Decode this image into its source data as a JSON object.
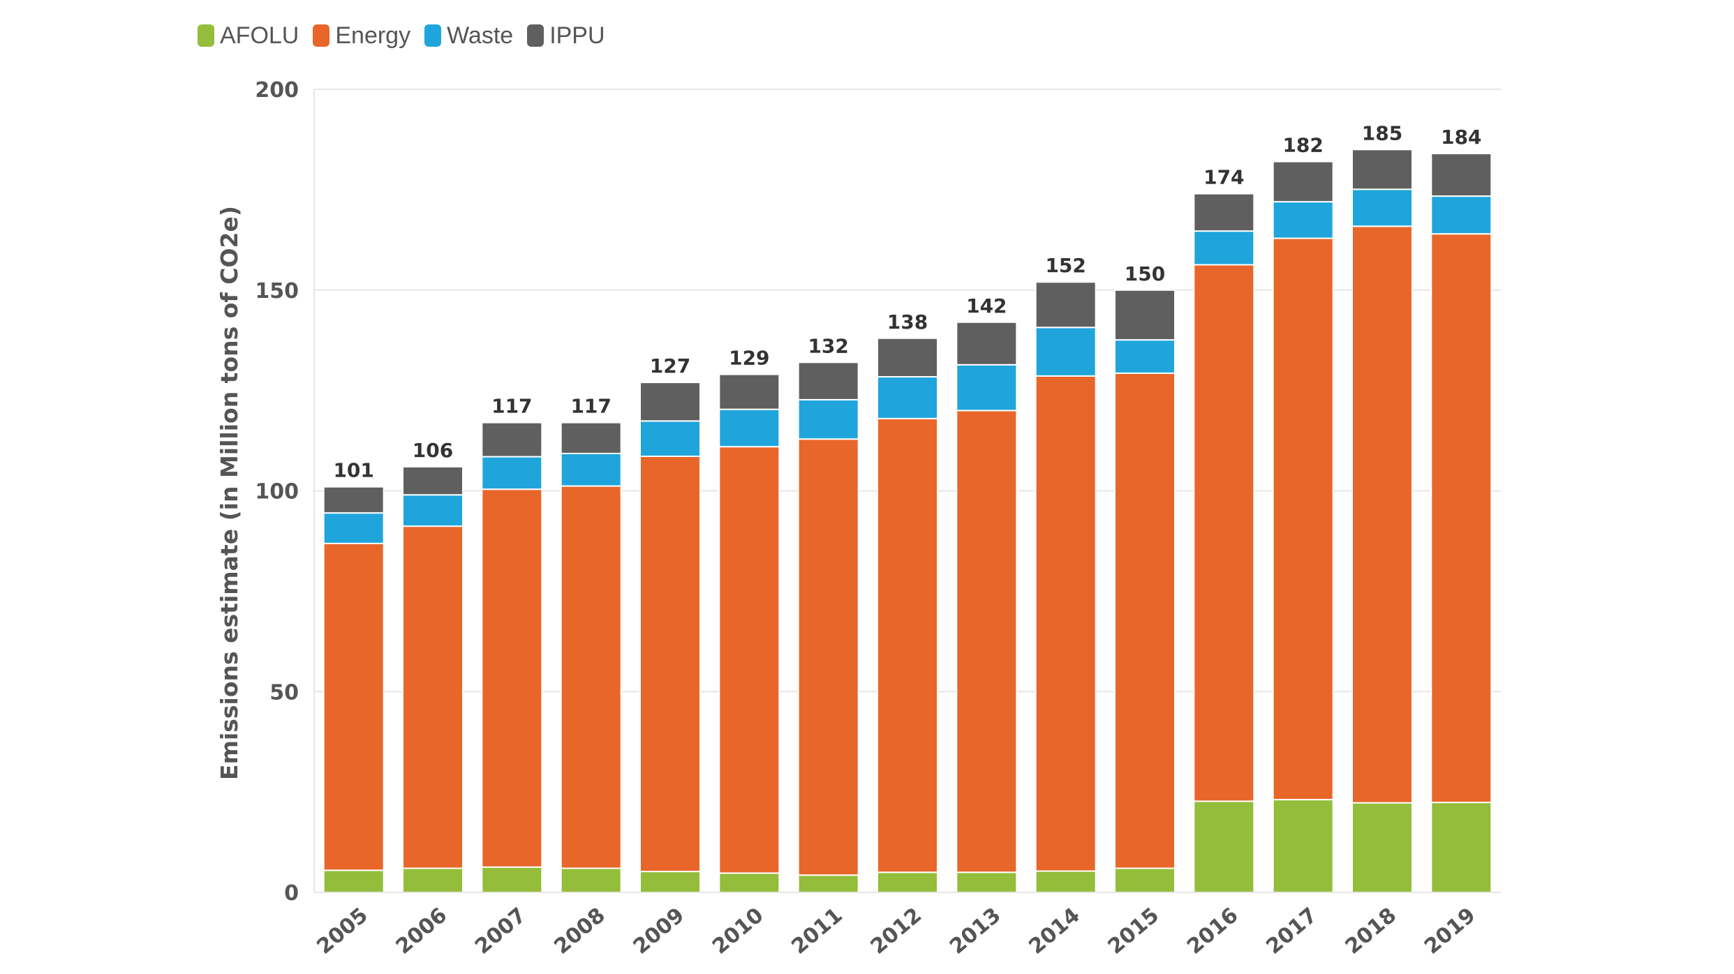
{
  "legend": {
    "items": [
      {
        "label": "AFOLU",
        "color": "#93bd3a"
      },
      {
        "label": "Energy",
        "color": "#e8662a"
      },
      {
        "label": "Waste",
        "color": "#1fa5dc"
      },
      {
        "label": "IPPU",
        "color": "#5f5f5f"
      }
    ]
  },
  "chart_data": {
    "type": "bar",
    "stacked": true,
    "ylabel": "Emissions estimate (in Million tons of CO2e)",
    "xlabel": "",
    "ylim": [
      0,
      200
    ],
    "yticks": [
      "0",
      "50",
      "100",
      "150",
      "200"
    ],
    "grid": true,
    "legend_position": "top-left",
    "categories": [
      "2005",
      "2006",
      "2007",
      "2008",
      "2009",
      "2010",
      "2011",
      "2012",
      "2013",
      "2014",
      "2015",
      "2016",
      "2017",
      "2018",
      "2019"
    ],
    "series": [
      {
        "name": "AFOLU",
        "color": "#93bd3a",
        "values": [
          5.5,
          6,
          6.3,
          6,
          5.2,
          4.8,
          4.3,
          5,
          5,
          5.3,
          6,
          22.7,
          23.1,
          22.3,
          22.4
        ]
      },
      {
        "name": "Energy",
        "color": "#e8662a",
        "values": [
          81.4,
          85.2,
          94.1,
          95.2,
          103.4,
          106.2,
          108.6,
          113,
          115,
          123.3,
          123.3,
          133.6,
          139.8,
          143.6,
          141.6
        ]
      },
      {
        "name": "Waste",
        "color": "#1fa5dc",
        "values": [
          7.6,
          7.8,
          8.1,
          8.1,
          8.8,
          9.3,
          9.8,
          10.4,
          11.4,
          12.1,
          8.3,
          8.4,
          9.1,
          9.2,
          9.4
        ]
      },
      {
        "name": "IPPU",
        "color": "#5f5f5f",
        "values": [
          6.5,
          7,
          8.5,
          7.7,
          9.6,
          8.7,
          9.3,
          9.6,
          10.6,
          11.3,
          12.4,
          9.3,
          10,
          9.9,
          10.6
        ]
      }
    ],
    "totals": [
      "101",
      "106",
      "117",
      "117",
      "127",
      "129",
      "132",
      "138",
      "142",
      "152",
      "150",
      "174",
      "182",
      "185",
      "184"
    ]
  }
}
